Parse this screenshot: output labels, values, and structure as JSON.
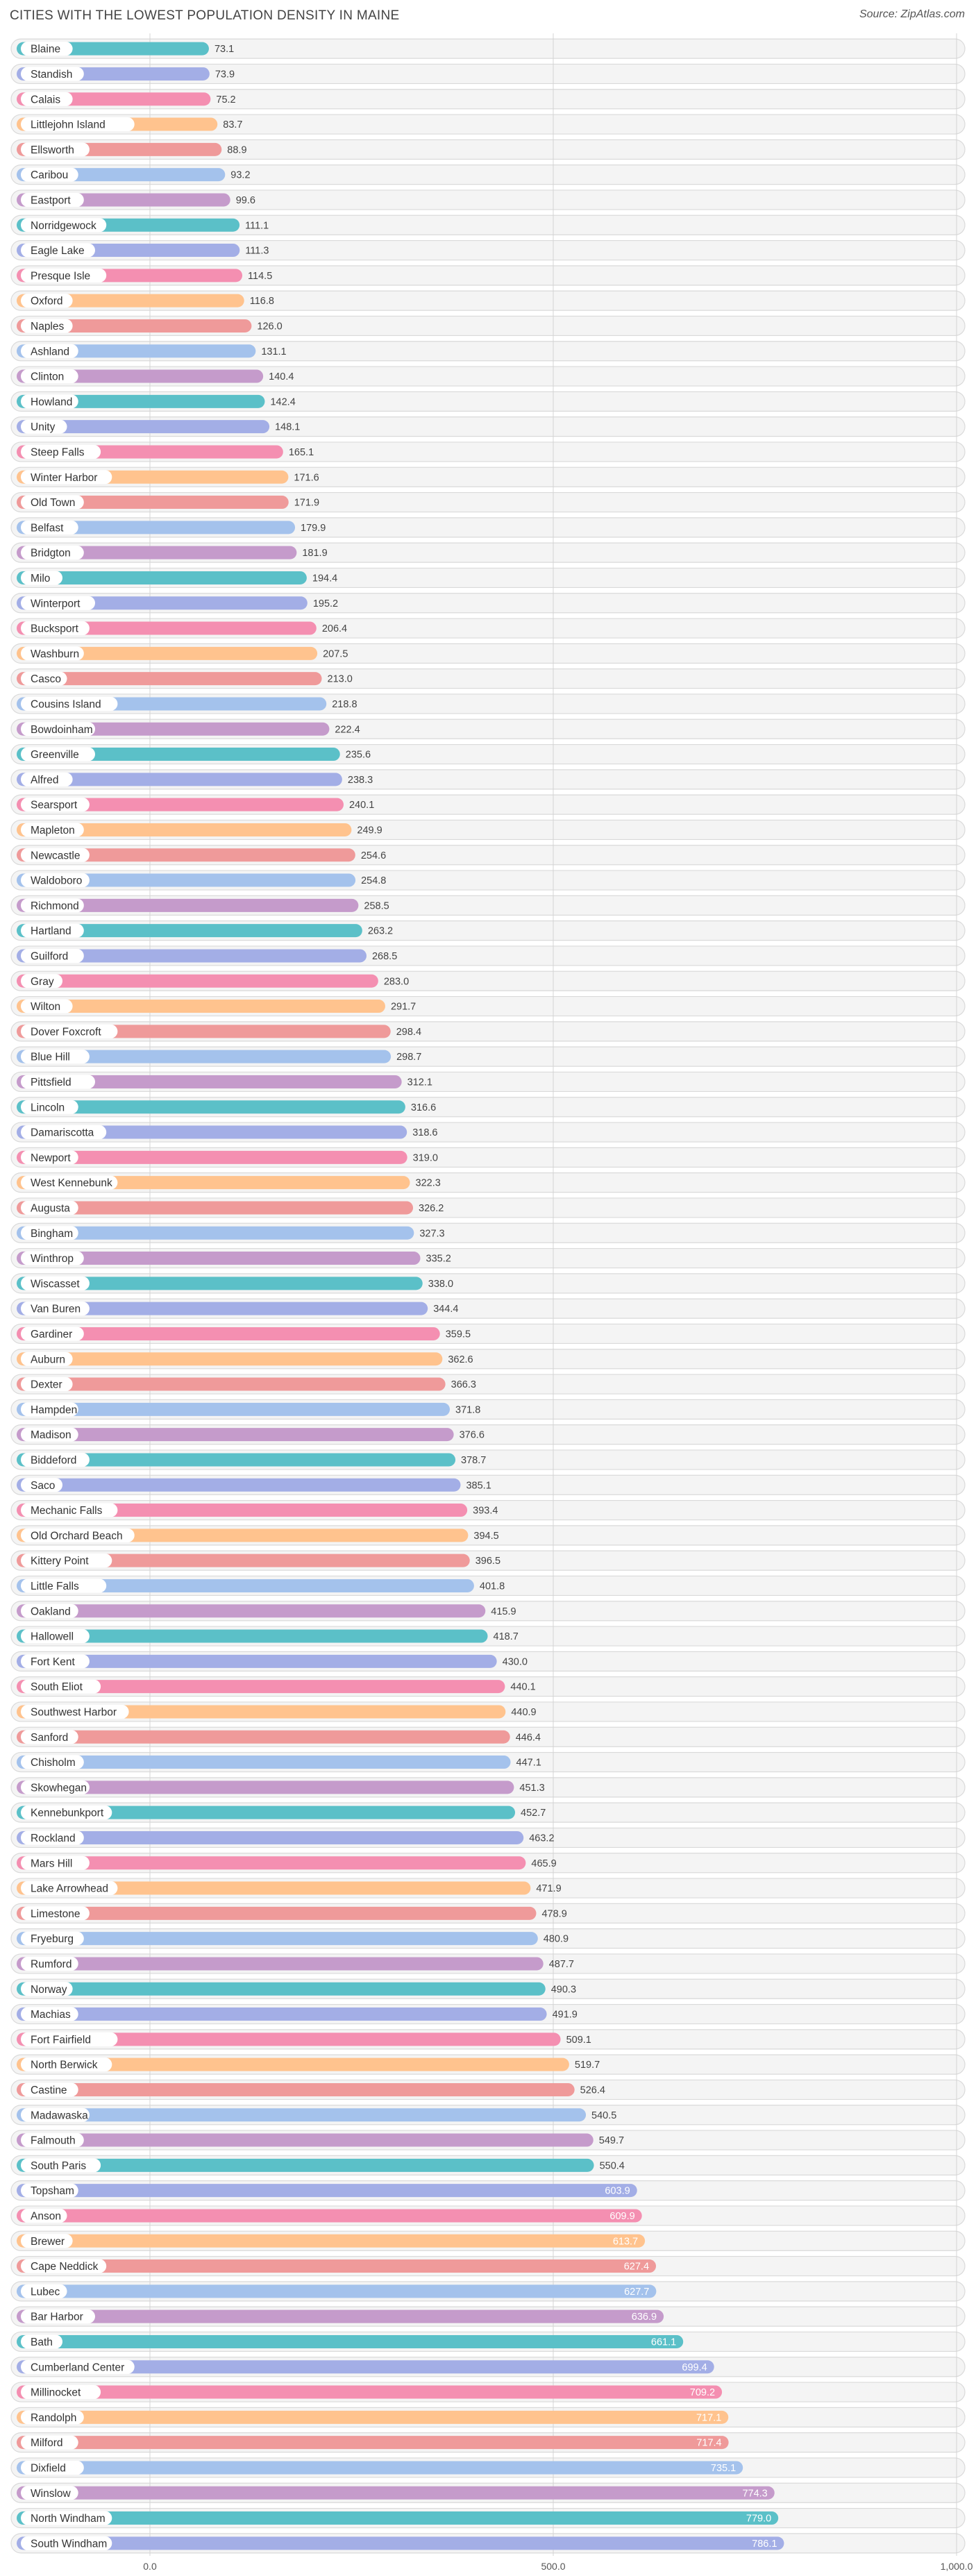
{
  "header": {
    "title": "CITIES WITH THE LOWEST POPULATION DENSITY IN MAINE",
    "source": "Source: ZipAtlas.com"
  },
  "chart_data": {
    "type": "bar",
    "orientation": "horizontal",
    "title": "CITIES WITH THE LOWEST POPULATION DENSITY IN MAINE",
    "xlim": [
      0,
      1000
    ],
    "xticks": [
      "0.0",
      "500.0",
      "1,000.0"
    ],
    "grid": true,
    "categories": [
      "Blaine",
      "Standish",
      "Calais",
      "Littlejohn Island",
      "Ellsworth",
      "Caribou",
      "Eastport",
      "Norridgewock",
      "Eagle Lake",
      "Presque Isle",
      "Oxford",
      "Naples",
      "Ashland",
      "Clinton",
      "Howland",
      "Unity",
      "Steep Falls",
      "Winter Harbor",
      "Old Town",
      "Belfast",
      "Bridgton",
      "Milo",
      "Winterport",
      "Bucksport",
      "Washburn",
      "Casco",
      "Cousins Island",
      "Bowdoinham",
      "Greenville",
      "Alfred",
      "Searsport",
      "Mapleton",
      "Newcastle",
      "Waldoboro",
      "Richmond",
      "Hartland",
      "Guilford",
      "Gray",
      "Wilton",
      "Dover Foxcroft",
      "Blue Hill",
      "Pittsfield",
      "Lincoln",
      "Damariscotta",
      "Newport",
      "West Kennebunk",
      "Augusta",
      "Bingham",
      "Winthrop",
      "Wiscasset",
      "Van Buren",
      "Gardiner",
      "Auburn",
      "Dexter",
      "Hampden",
      "Madison",
      "Biddeford",
      "Saco",
      "Mechanic Falls",
      "Old Orchard Beach",
      "Kittery Point",
      "Little Falls",
      "Oakland",
      "Hallowell",
      "Fort Kent",
      "South Eliot",
      "Southwest Harbor",
      "Sanford",
      "Chisholm",
      "Skowhegan",
      "Kennebunkport",
      "Rockland",
      "Mars Hill",
      "Lake Arrowhead",
      "Limestone",
      "Fryeburg",
      "Rumford",
      "Norway",
      "Machias",
      "Fort Fairfield",
      "North Berwick",
      "Castine",
      "Madawaska",
      "Falmouth",
      "South Paris",
      "Topsham",
      "Anson",
      "Brewer",
      "Cape Neddick",
      "Lubec",
      "Bar Harbor",
      "Bath",
      "Cumberland Center",
      "Millinocket",
      "Randolph",
      "Milford",
      "Dixfield",
      "Winslow",
      "North Windham",
      "South Windham"
    ],
    "values": [
      73.1,
      73.9,
      75.2,
      83.7,
      88.9,
      93.2,
      99.6,
      111.1,
      111.3,
      114.5,
      116.8,
      126.0,
      131.1,
      140.4,
      142.4,
      148.1,
      165.1,
      171.6,
      171.9,
      179.9,
      181.9,
      194.4,
      195.2,
      206.4,
      207.5,
      213.0,
      218.8,
      222.4,
      235.6,
      238.3,
      240.1,
      249.9,
      254.6,
      254.8,
      258.5,
      263.2,
      268.5,
      283.0,
      291.7,
      298.4,
      298.7,
      312.1,
      316.6,
      318.6,
      319.0,
      322.3,
      326.2,
      327.3,
      335.2,
      338.0,
      344.4,
      359.5,
      362.6,
      366.3,
      371.8,
      376.6,
      378.7,
      385.1,
      393.4,
      394.5,
      396.5,
      401.8,
      415.9,
      418.7,
      430.0,
      440.1,
      440.9,
      446.4,
      447.1,
      451.3,
      452.7,
      463.2,
      465.9,
      471.9,
      478.9,
      480.9,
      487.7,
      490.3,
      491.9,
      509.1,
      519.7,
      526.4,
      540.5,
      549.7,
      550.4,
      603.9,
      609.9,
      613.7,
      627.4,
      627.7,
      636.9,
      661.1,
      699.4,
      709.2,
      717.1,
      717.4,
      735.1,
      774.3,
      779.0,
      786.1
    ],
    "value_labels": [
      "73.1",
      "73.9",
      "75.2",
      "83.7",
      "88.9",
      "93.2",
      "99.6",
      "111.1",
      "111.3",
      "114.5",
      "116.8",
      "126.0",
      "131.1",
      "140.4",
      "142.4",
      "148.1",
      "165.1",
      "171.6",
      "171.9",
      "179.9",
      "181.9",
      "194.4",
      "195.2",
      "206.4",
      "207.5",
      "213.0",
      "218.8",
      "222.4",
      "235.6",
      "238.3",
      "240.1",
      "249.9",
      "254.6",
      "254.8",
      "258.5",
      "263.2",
      "268.5",
      "283.0",
      "291.7",
      "298.4",
      "298.7",
      "312.1",
      "316.6",
      "318.6",
      "319.0",
      "322.3",
      "326.2",
      "327.3",
      "335.2",
      "338.0",
      "344.4",
      "359.5",
      "362.6",
      "366.3",
      "371.8",
      "376.6",
      "378.7",
      "385.1",
      "393.4",
      "394.5",
      "396.5",
      "401.8",
      "415.9",
      "418.7",
      "430.0",
      "440.1",
      "440.9",
      "446.4",
      "447.1",
      "451.3",
      "452.7",
      "463.2",
      "465.9",
      "471.9",
      "478.9",
      "480.9",
      "487.7",
      "490.3",
      "491.9",
      "509.1",
      "519.7",
      "526.4",
      "540.5",
      "549.7",
      "550.4",
      "603.9",
      "609.9",
      "613.7",
      "627.4",
      "627.7",
      "636.9",
      "661.1",
      "699.4",
      "709.2",
      "717.1",
      "717.4",
      "735.1",
      "774.3",
      "779.0",
      "786.1"
    ],
    "palette": [
      "#5bc0c8",
      "#a3aee6",
      "#f48fb1",
      "#ffc38e",
      "#ef9a9a",
      "#a4c2ec",
      "#c59bcb",
      "#5bc0c8",
      "#a3aee6",
      "#f48fb1",
      "#ffc38e",
      "#ef9a9a",
      "#a4c2ec",
      "#c59bcb"
    ]
  }
}
